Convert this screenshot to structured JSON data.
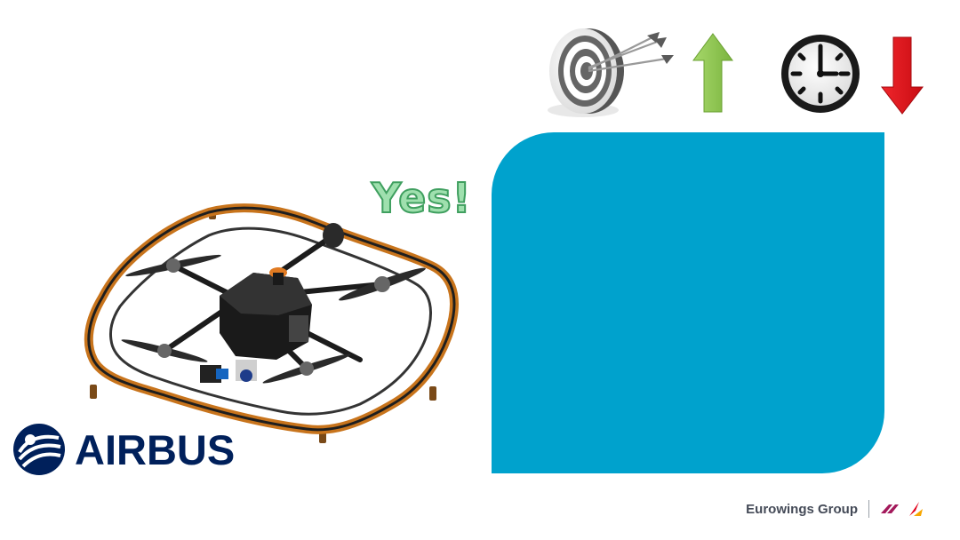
{
  "slide": {
    "exclamation": "Yes!",
    "logo_text": "AIRBUS",
    "footer_brand": "Eurowings Group"
  },
  "icons": {
    "target": "target-with-arrows-icon",
    "up": "green-arrow-up-icon",
    "clock": "clock-icon",
    "down": "red-arrow-down-icon"
  },
  "colors": {
    "panel": "#00a2cd",
    "yes_fill": "#9fe0ae",
    "yes_stroke": "#3f9f5f",
    "arrow_up": "#8cc152",
    "arrow_down": "#e8141b",
    "drone_frame": "#c8741c",
    "airbus_navy": "#00205b"
  }
}
